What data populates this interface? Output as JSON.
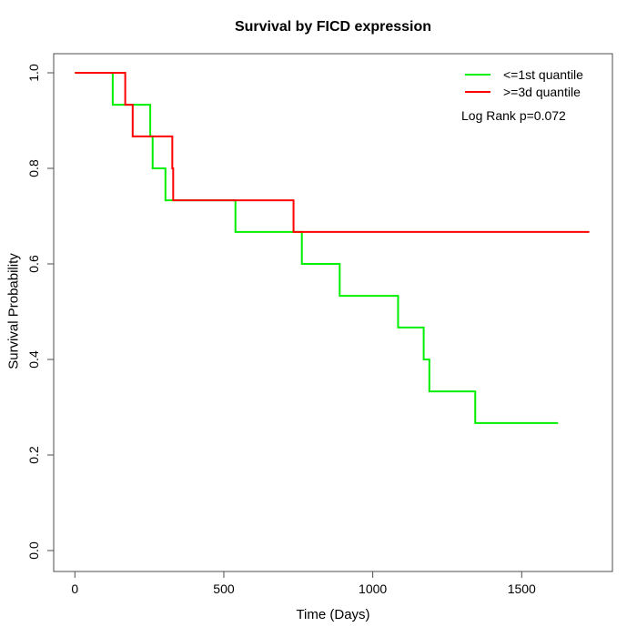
{
  "chart_data": {
    "type": "line",
    "subtype": "kaplan-meier-step",
    "title": "Survival by FICD expression",
    "xlabel": "Time (Days)",
    "ylabel": "Survival Probability",
    "x_ticks": [
      0,
      500,
      1000,
      1500
    ],
    "y_ticks": [
      "0.0",
      "0.2",
      "0.4",
      "0.6",
      "0.8",
      "1.0"
    ],
    "xlim": [
      0,
      1810
    ],
    "ylim": [
      0.0,
      1.0
    ],
    "grid": false,
    "legend_position": "top-right",
    "annotation": "Log Rank p=0.072",
    "series": [
      {
        "name": "<=1st quantile",
        "color": "#00ee00",
        "times": [
          0,
          127,
          253,
          261,
          304,
          539,
          762,
          889,
          1085,
          1171,
          1190,
          1344
        ],
        "survival": [
          1.0,
          0.933,
          0.867,
          0.8,
          0.733,
          0.667,
          0.6,
          0.533,
          0.467,
          0.4,
          0.333,
          0.267
        ],
        "end_time": 1622
      },
      {
        "name": ">=3d quantile",
        "color": "#ff0000",
        "times": [
          0,
          169,
          194,
          327,
          330,
          734
        ],
        "survival": [
          1.0,
          0.933,
          0.867,
          0.8,
          0.733,
          0.667
        ],
        "end_time": 1727
      }
    ]
  },
  "colors": {
    "axis": "#4d4d4d",
    "text": "#000000",
    "background": "#ffffff"
  }
}
